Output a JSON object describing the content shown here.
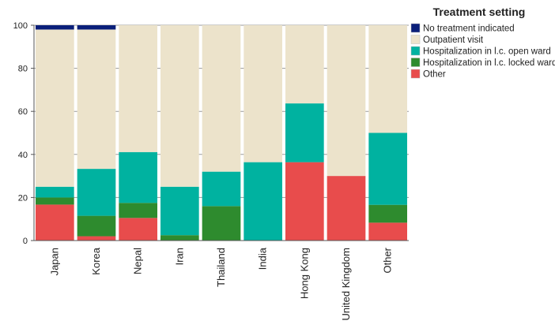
{
  "chart_data": {
    "type": "bar",
    "stacked": true,
    "categories": [
      "Japan",
      "Korea",
      "Nepal",
      "Iran",
      "Thailand",
      "India",
      "Hong Kong",
      "United Kingdom",
      "Other"
    ],
    "series": [
      {
        "name": "Other",
        "color": "#e84c4c",
        "values": [
          16.7,
          2,
          10.5,
          0,
          0,
          0,
          36.4,
          30,
          8.3
        ]
      },
      {
        "name": "Hospitalization in l.c. locked ward",
        "color": "#2e8b2e",
        "values": [
          3.3,
          9.5,
          7,
          2.5,
          16,
          0,
          0,
          0,
          8.3
        ]
      },
      {
        "name": "Hospitalization in l.c. open ward",
        "color": "#00b2a0",
        "values": [
          5,
          21.8,
          23.6,
          22.5,
          16,
          36.4,
          27.3,
          0,
          33.4
        ]
      },
      {
        "name": "Outpatient visit",
        "color": "#ece3cb",
        "values": [
          73,
          64.7,
          58.9,
          75,
          68,
          63.6,
          36.3,
          70,
          50
        ]
      },
      {
        "name": "No treatment indicated",
        "color": "#0a1f7a",
        "values": [
          2,
          2,
          0,
          0,
          0,
          0,
          0,
          0,
          0
        ]
      }
    ],
    "legend_order": [
      "No treatment indicated",
      "Outpatient visit",
      "Hospitalization in l.c. open ward",
      "Hospitalization in l.c. locked ward",
      "Other"
    ],
    "legend_title": "Treatment setting",
    "legend_position": "top-right",
    "ylim": [
      0,
      100
    ],
    "yticks": [
      0,
      20,
      40,
      60,
      80,
      100
    ],
    "grid": true,
    "title": "",
    "xlabel": "",
    "ylabel": ""
  }
}
